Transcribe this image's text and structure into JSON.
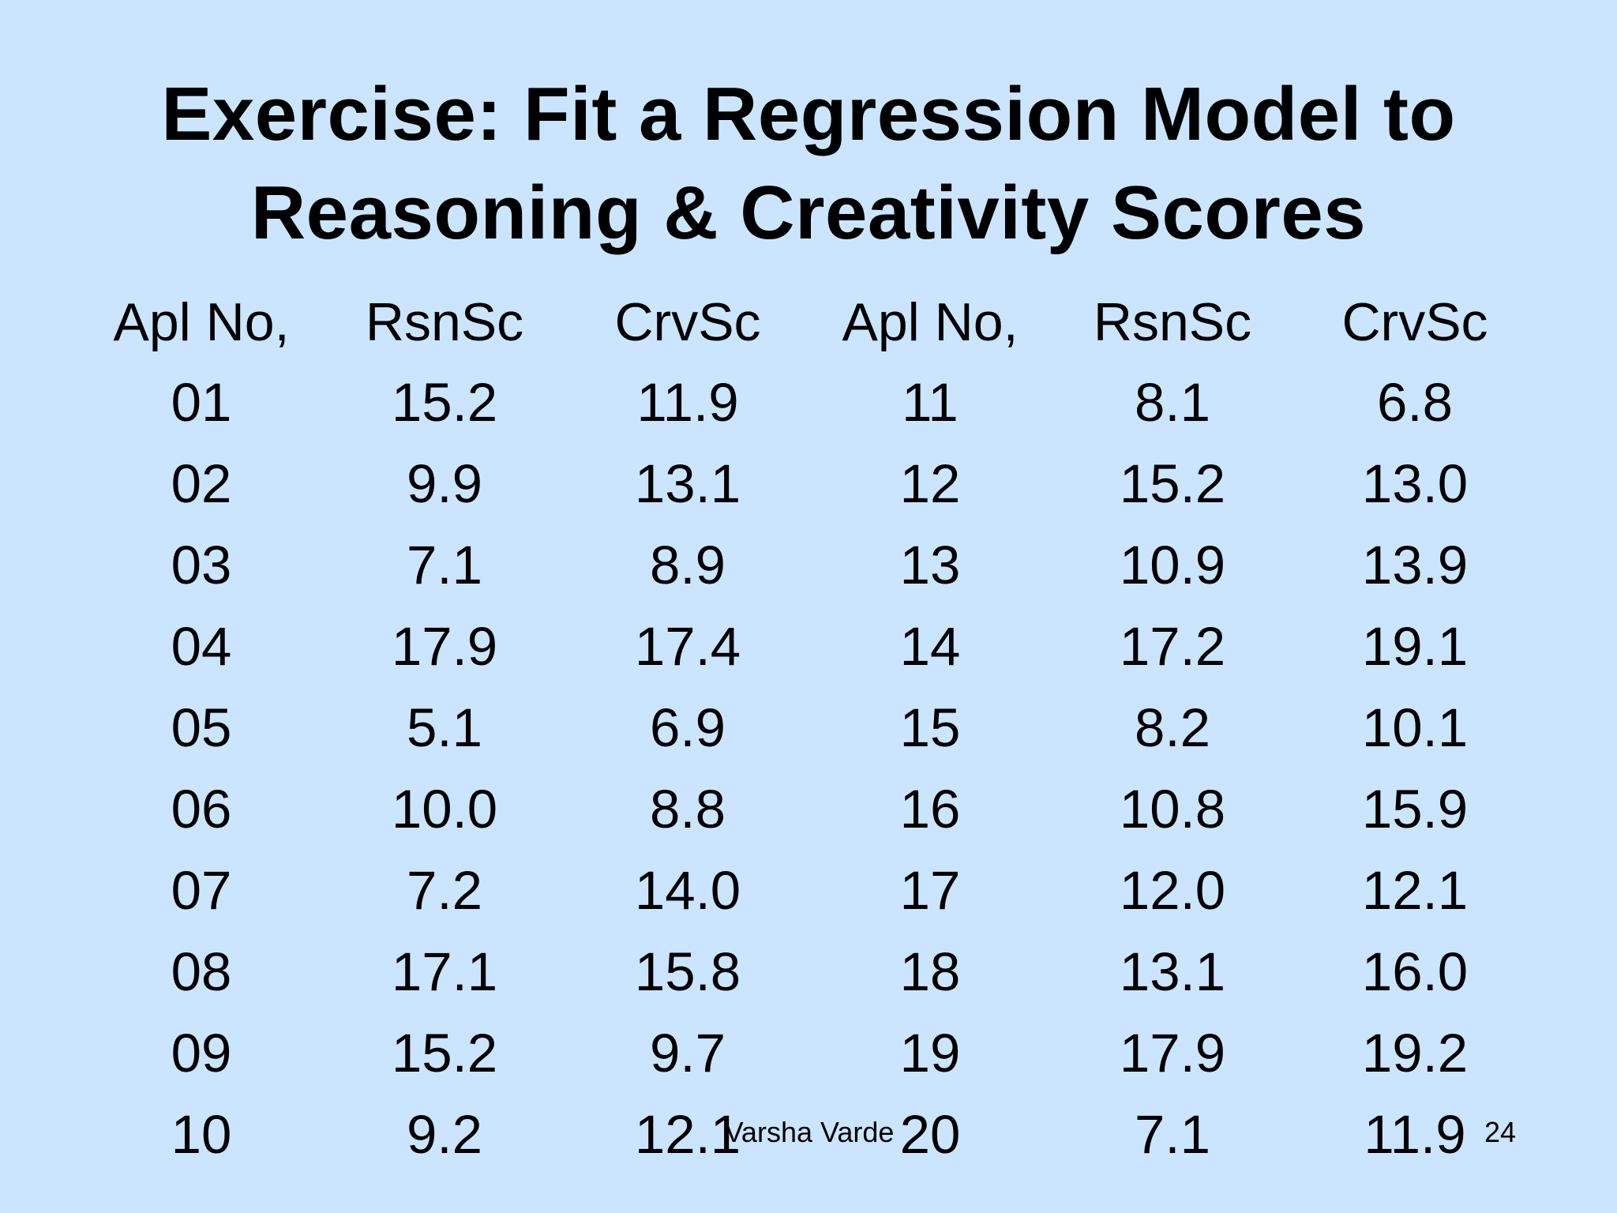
{
  "slide": {
    "title_line1": "Exercise: Fit a Regression Model to",
    "title_line2": "Reasoning & Creativity Scores",
    "author": "Varsha Varde",
    "page_number": "24"
  },
  "table": {
    "headers": [
      "Apl No,",
      "RsnSc",
      "CrvSc",
      "Apl No,",
      "RsnSc",
      "CrvSc"
    ],
    "rows": [
      [
        "01",
        "15.2",
        "11.9",
        "11",
        "8.1",
        "6.8"
      ],
      [
        "02",
        "9.9",
        "13.1",
        "12",
        "15.2",
        "13.0"
      ],
      [
        "03",
        "7.1",
        "8.9",
        "13",
        "10.9",
        "13.9"
      ],
      [
        "04",
        "17.9",
        "17.4",
        "14",
        "17.2",
        "19.1"
      ],
      [
        "05",
        "5.1",
        "6.9",
        "15",
        "8.2",
        "10.1"
      ],
      [
        "06",
        "10.0",
        "8.8",
        "16",
        "10.8",
        "15.9"
      ],
      [
        "07",
        "7.2",
        "14.0",
        "17",
        "12.0",
        "12.1"
      ],
      [
        "08",
        "17.1",
        "15.8",
        "18",
        "13.1",
        "16.0"
      ],
      [
        "09",
        "15.2",
        "9.7",
        "19",
        "17.9",
        "19.2"
      ],
      [
        "10",
        "9.2",
        "12.1",
        "20",
        "7.1",
        "11.9"
      ]
    ]
  }
}
